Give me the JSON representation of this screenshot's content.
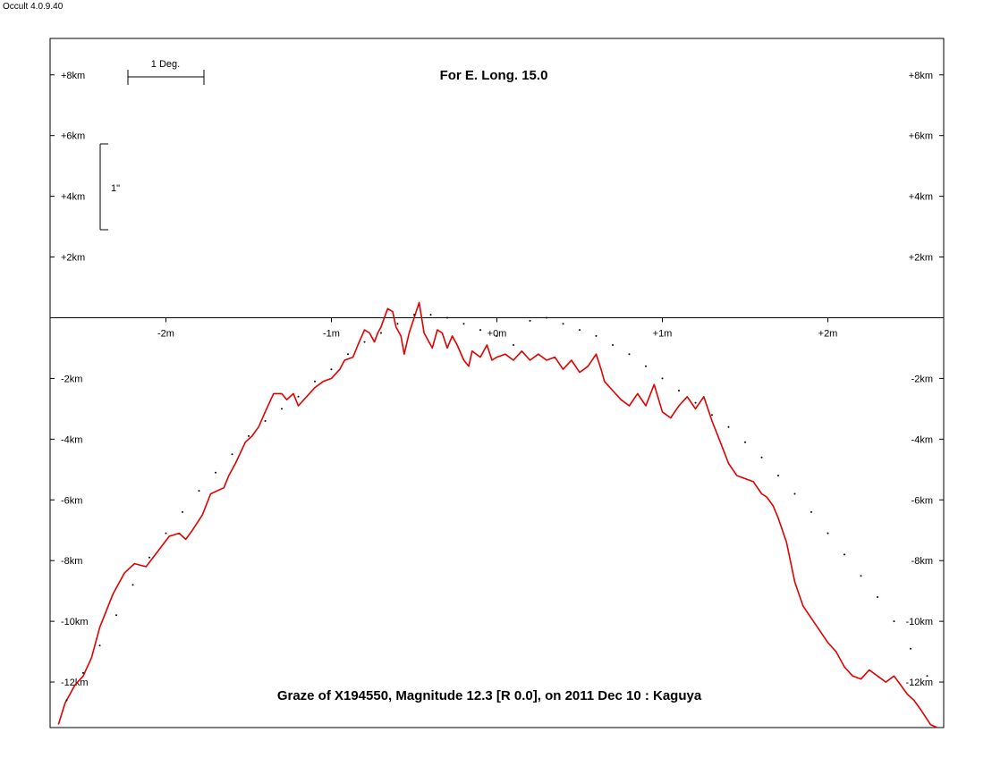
{
  "app": {
    "title": "Occult 4.0.9.40"
  },
  "chart_data": {
    "type": "line",
    "title": "Graze of  X194550,  Magnitude 12.3 [R 0.0],  on 2011 Dec 10  :  Kaguya",
    "subtitle": "For E. Long. 15.0",
    "scale_bars": {
      "horizontal_label": "1 Deg.",
      "vertical_label": "1\""
    },
    "xlim": [
      -2.7,
      2.7
    ],
    "ylim": [
      -13.5,
      9.2
    ],
    "x_ticks": [
      {
        "value": -2,
        "label": "-2m"
      },
      {
        "value": -1,
        "label": "-1m"
      },
      {
        "value": 0,
        "label": "+0m"
      },
      {
        "value": 1,
        "label": "+1m"
      },
      {
        "value": 2,
        "label": "+2m"
      }
    ],
    "y_ticks": [
      {
        "value": 8,
        "label": "+8km"
      },
      {
        "value": 6,
        "label": "+6km"
      },
      {
        "value": 4,
        "label": "+4km"
      },
      {
        "value": 2,
        "label": "+2km"
      },
      {
        "value": -2,
        "label": "-2km"
      },
      {
        "value": -4,
        "label": "-4km"
      },
      {
        "value": -6,
        "label": "-6km"
      },
      {
        "value": -8,
        "label": "-8km"
      },
      {
        "value": -10,
        "label": "-10km"
      },
      {
        "value": -12,
        "label": "-12km"
      }
    ],
    "series": [
      {
        "color": "#e00000",
        "style": "line",
        "x": [
          -2.65,
          -2.61,
          -2.55,
          -2.5,
          -2.45,
          -2.4,
          -2.32,
          -2.25,
          -2.19,
          -2.12,
          -2.05,
          -1.98,
          -1.92,
          -1.88,
          -1.84,
          -1.78,
          -1.73,
          -1.65,
          -1.62,
          -1.58,
          -1.52,
          -1.48,
          -1.44,
          -1.4,
          -1.35,
          -1.3,
          -1.27,
          -1.23,
          -1.2,
          -1.15,
          -1.1,
          -1.05,
          -1.0,
          -0.95,
          -0.92,
          -0.87,
          -0.84,
          -0.8,
          -0.77,
          -0.74,
          -0.72,
          -0.7,
          -0.66,
          -0.63,
          -0.61,
          -0.58,
          -0.56,
          -0.53,
          -0.5,
          -0.47,
          -0.44,
          -0.42,
          -0.39,
          -0.36,
          -0.33,
          -0.3,
          -0.27,
          -0.24,
          -0.2,
          -0.17,
          -0.15,
          -0.1,
          -0.06,
          -0.03,
          0.0,
          0.05,
          0.1,
          0.15,
          0.2,
          0.25,
          0.3,
          0.35,
          0.4,
          0.45,
          0.5,
          0.55,
          0.6,
          0.63,
          0.65,
          0.7,
          0.75,
          0.8,
          0.85,
          0.9,
          0.95,
          1.0,
          1.05,
          1.1,
          1.15,
          1.2,
          1.25,
          1.3,
          1.35,
          1.4,
          1.45,
          1.5,
          1.55,
          1.6,
          1.63,
          1.67,
          1.7,
          1.75,
          1.8,
          1.85,
          1.9,
          1.95,
          2.0,
          2.05,
          2.1,
          2.15,
          2.2,
          2.25,
          2.3,
          2.35,
          2.4,
          2.44,
          2.48,
          2.52,
          2.56,
          2.62,
          2.66
        ],
        "y": [
          -13.4,
          -12.7,
          -12.1,
          -11.8,
          -11.2,
          -10.2,
          -9.1,
          -8.4,
          -8.1,
          -8.2,
          -7.7,
          -7.2,
          -7.1,
          -7.3,
          -7.0,
          -6.5,
          -5.8,
          -5.6,
          -5.2,
          -4.8,
          -4.1,
          -3.9,
          -3.6,
          -3.1,
          -2.5,
          -2.5,
          -2.7,
          -2.5,
          -2.9,
          -2.6,
          -2.3,
          -2.1,
          -2.0,
          -1.7,
          -1.4,
          -1.3,
          -0.9,
          -0.4,
          -0.5,
          -0.8,
          -0.5,
          -0.3,
          0.3,
          0.2,
          -0.3,
          -0.6,
          -1.2,
          -0.5,
          0.0,
          0.5,
          -0.5,
          -0.7,
          -1.0,
          -0.4,
          -0.5,
          -1.0,
          -0.6,
          -0.9,
          -1.4,
          -1.6,
          -1.1,
          -1.3,
          -0.9,
          -1.4,
          -1.3,
          -1.2,
          -1.4,
          -1.1,
          -1.4,
          -1.2,
          -1.4,
          -1.3,
          -1.7,
          -1.4,
          -1.8,
          -1.6,
          -1.2,
          -1.7,
          -2.1,
          -2.4,
          -2.7,
          -2.9,
          -2.5,
          -2.9,
          -2.2,
          -3.1,
          -3.3,
          -2.9,
          -2.6,
          -3.0,
          -2.6,
          -3.4,
          -4.1,
          -4.8,
          -5.2,
          -5.3,
          -5.4,
          -5.8,
          -5.9,
          -6.2,
          -6.6,
          -7.4,
          -8.7,
          -9.5,
          -9.9,
          -10.3,
          -10.7,
          -11.0,
          -11.5,
          -11.8,
          -11.9,
          -11.6,
          -11.8,
          -12.0,
          -11.8,
          -12.1,
          -12.4,
          -12.6,
          -12.9,
          -13.4,
          -13.5
        ]
      },
      {
        "color": "#000000",
        "style": "dots",
        "x": [
          -2.6,
          -2.5,
          -2.4,
          -2.3,
          -2.2,
          -2.1,
          -2.0,
          -1.9,
          -1.8,
          -1.7,
          -1.6,
          -1.5,
          -1.4,
          -1.3,
          -1.2,
          -1.1,
          -1.0,
          -0.9,
          -0.8,
          -0.7,
          -0.6,
          -0.5,
          -0.4,
          -0.3,
          -0.2,
          -0.1,
          0.0,
          0.1,
          0.2,
          0.3,
          0.4,
          0.5,
          0.6,
          0.7,
          0.8,
          0.9,
          1.0,
          1.1,
          1.2,
          1.3,
          1.4,
          1.5,
          1.6,
          1.7,
          1.8,
          1.9,
          2.0,
          2.1,
          2.2,
          2.3,
          2.4,
          2.5,
          2.6
        ],
        "y": [
          -12.6,
          -11.7,
          -10.8,
          -9.8,
          -8.8,
          -7.9,
          -7.1,
          -6.4,
          -5.7,
          -5.1,
          -4.5,
          -3.9,
          -3.4,
          -3.0,
          -2.6,
          -2.1,
          -1.7,
          -1.2,
          -0.8,
          -0.5,
          -0.2,
          0.1,
          0.1,
          0.0,
          -0.2,
          -0.4,
          -0.6,
          -0.9,
          -0.1,
          0.0,
          -0.2,
          -0.4,
          -0.6,
          -0.9,
          -1.2,
          -1.6,
          -2.0,
          -2.4,
          -2.8,
          -3.2,
          -3.6,
          -4.1,
          -4.6,
          -5.2,
          -5.8,
          -6.4,
          -7.1,
          -7.8,
          -8.5,
          -9.2,
          -10.0,
          -10.9,
          -11.8
        ]
      }
    ]
  }
}
